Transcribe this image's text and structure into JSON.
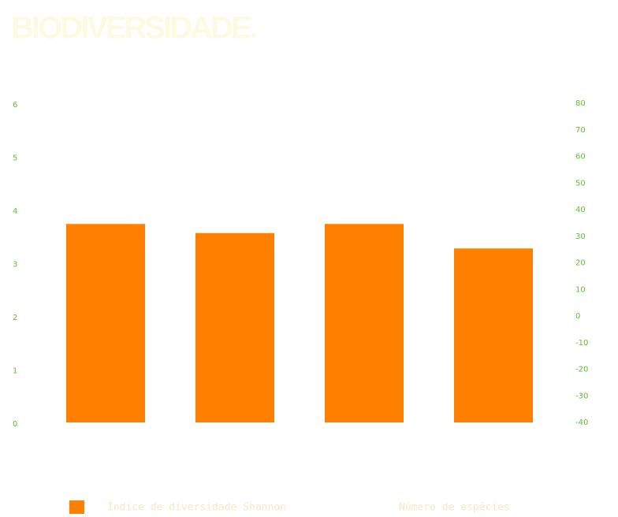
{
  "chart_data": {
    "type": "bar",
    "title": "BIODIVERSIDADE.",
    "categories": [
      null,
      null,
      null,
      null
    ],
    "series": [
      {
        "name": "Índice de diversidade Shannon",
        "color": "#ff8000",
        "values": [
          3.73,
          3.56,
          3.73,
          3.27
        ]
      },
      {
        "name": "Número de espécies",
        "color": "#ffffff",
        "axis": "y2",
        "values": [
          null,
          null,
          null,
          null
        ]
      }
    ],
    "ylim": [
      0,
      6
    ],
    "yticks": [
      0,
      1,
      2,
      3,
      4,
      5,
      6
    ],
    "y2lim": [
      -40,
      80
    ],
    "y2ticks": [
      -40,
      -30,
      -20,
      -10,
      0,
      10,
      20,
      30,
      40,
      50,
      60,
      70,
      80
    ],
    "grid": false
  }
}
